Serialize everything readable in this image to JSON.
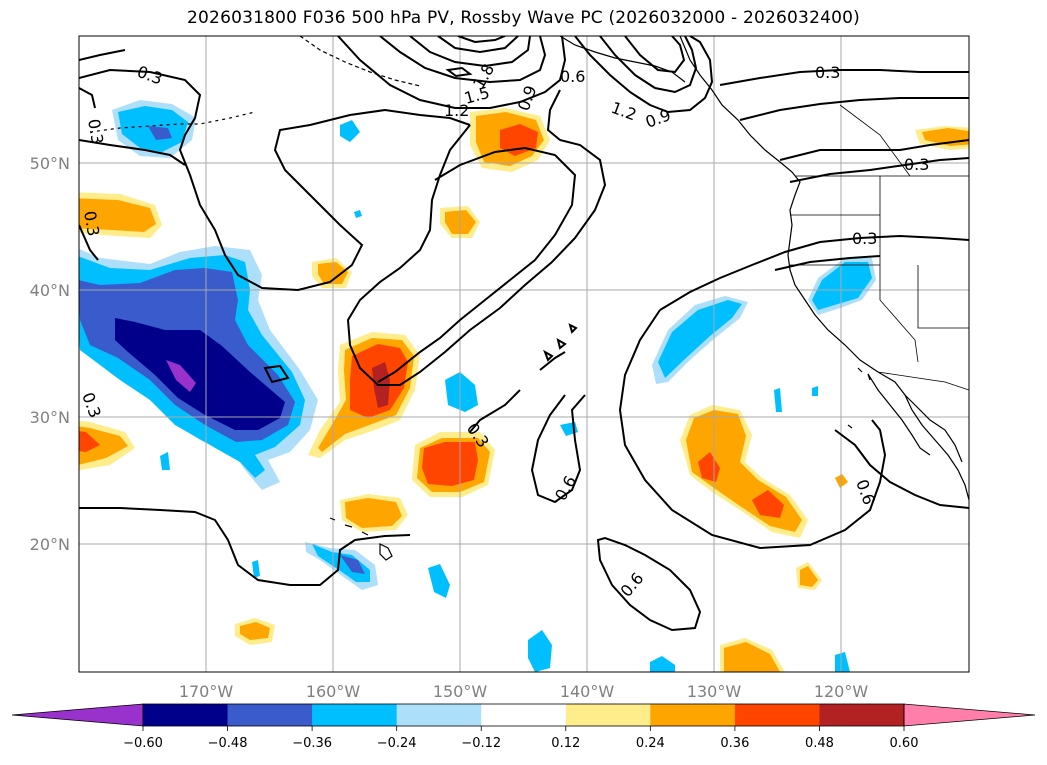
{
  "title": "2026031800 F036 500 hPa PV, Rossby Wave PC (2026032000 - 2026032400)",
  "lat_labels": [
    "50°N",
    "40°N",
    "30°N",
    "20°N"
  ],
  "lon_labels": [
    "170°W",
    "160°W",
    "150°W",
    "140°W",
    "130°W",
    "120°W"
  ],
  "colorbar": {
    "colors": [
      "#9932CC",
      "#00008B",
      "#3A5BCB",
      "#00BFFF",
      "#ADDFFA",
      "#FFFFFF",
      "#FFEC8B",
      "#FFA500",
      "#FF4500",
      "#B22222",
      "#FF7FAA"
    ],
    "ticks": [
      "−0.60",
      "−0.48",
      "−0.36",
      "−0.24",
      "−0.12",
      "0.12",
      "0.24",
      "0.36",
      "0.48",
      "0.60"
    ]
  },
  "contour_labels": [
    "0.3",
    "0.3",
    "0.3",
    "0.3",
    "0.3",
    "0.3",
    "0.3",
    "0.3",
    "0.6",
    "0.6",
    "0.6",
    "0.6",
    "0.9",
    "0.9",
    "1.2",
    "1.2",
    "1.5",
    "1.8"
  ]
}
